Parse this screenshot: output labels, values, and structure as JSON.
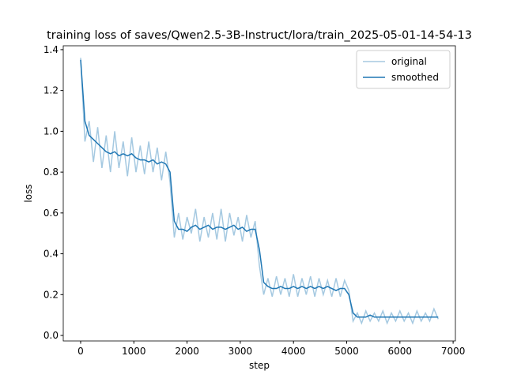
{
  "chart_data": {
    "type": "line",
    "title": "training loss of saves/Qwen2.5-3B-Instruct/lora/train_2025-05-01-14-54-13",
    "x_label": "step",
    "y_label": "loss",
    "x": [
      0,
      80,
      160,
      240,
      320,
      400,
      480,
      560,
      640,
      720,
      800,
      880,
      960,
      1040,
      1120,
      1200,
      1280,
      1360,
      1440,
      1520,
      1600,
      1680,
      1760,
      1840,
      1920,
      2000,
      2080,
      2160,
      2240,
      2320,
      2400,
      2480,
      2560,
      2640,
      2720,
      2800,
      2880,
      2960,
      3040,
      3120,
      3200,
      3280,
      3360,
      3440,
      3520,
      3600,
      3680,
      3760,
      3840,
      3920,
      4000,
      4080,
      4160,
      4240,
      4320,
      4400,
      4480,
      4560,
      4640,
      4720,
      4800,
      4880,
      4960,
      5040,
      5120,
      5200,
      5280,
      5360,
      5440,
      5520,
      5600,
      5680,
      5760,
      5840,
      5920,
      6000,
      6080,
      6160,
      6240,
      6320,
      6400,
      6480,
      6560,
      6640,
      6720
    ],
    "series": [
      {
        "name": "original",
        "color": "#a5c9e1",
        "values": [
          1.36,
          0.95,
          1.05,
          0.85,
          1.02,
          0.82,
          0.98,
          0.8,
          1.0,
          0.82,
          0.95,
          0.78,
          0.97,
          0.8,
          0.93,
          0.79,
          0.95,
          0.8,
          0.92,
          0.76,
          0.9,
          0.75,
          0.48,
          0.6,
          0.47,
          0.58,
          0.5,
          0.62,
          0.46,
          0.58,
          0.48,
          0.6,
          0.47,
          0.62,
          0.46,
          0.6,
          0.49,
          0.58,
          0.46,
          0.59,
          0.48,
          0.56,
          0.34,
          0.2,
          0.28,
          0.19,
          0.29,
          0.2,
          0.28,
          0.19,
          0.3,
          0.19,
          0.28,
          0.2,
          0.29,
          0.19,
          0.28,
          0.2,
          0.27,
          0.19,
          0.28,
          0.19,
          0.27,
          0.22,
          0.07,
          0.11,
          0.06,
          0.12,
          0.07,
          0.11,
          0.07,
          0.12,
          0.06,
          0.11,
          0.07,
          0.12,
          0.07,
          0.11,
          0.06,
          0.12,
          0.07,
          0.11,
          0.07,
          0.13,
          0.08
        ]
      },
      {
        "name": "smoothed",
        "color": "#1f77b4",
        "values": [
          1.35,
          1.05,
          0.98,
          0.96,
          0.94,
          0.92,
          0.9,
          0.89,
          0.9,
          0.88,
          0.89,
          0.88,
          0.89,
          0.87,
          0.86,
          0.86,
          0.85,
          0.86,
          0.84,
          0.85,
          0.84,
          0.8,
          0.56,
          0.52,
          0.52,
          0.51,
          0.53,
          0.54,
          0.52,
          0.53,
          0.54,
          0.52,
          0.53,
          0.53,
          0.52,
          0.53,
          0.54,
          0.52,
          0.53,
          0.51,
          0.52,
          0.52,
          0.42,
          0.26,
          0.24,
          0.23,
          0.23,
          0.24,
          0.23,
          0.23,
          0.24,
          0.23,
          0.24,
          0.23,
          0.24,
          0.23,
          0.24,
          0.23,
          0.24,
          0.23,
          0.22,
          0.23,
          0.23,
          0.2,
          0.11,
          0.09,
          0.09,
          0.09,
          0.1,
          0.09,
          0.09,
          0.09,
          0.09,
          0.09,
          0.09,
          0.09,
          0.09,
          0.09,
          0.09,
          0.09,
          0.09,
          0.09,
          0.09,
          0.09,
          0.09
        ]
      }
    ],
    "xlim": [
      -327,
      7043
    ],
    "ylim": [
      -0.027,
      1.419
    ],
    "xticks": [
      0,
      1000,
      2000,
      3000,
      4000,
      5000,
      6000,
      7000
    ],
    "yticks": [
      0.0,
      0.2,
      0.4,
      0.6,
      0.8,
      1.0,
      1.2,
      1.4
    ],
    "legend": "upper right"
  }
}
